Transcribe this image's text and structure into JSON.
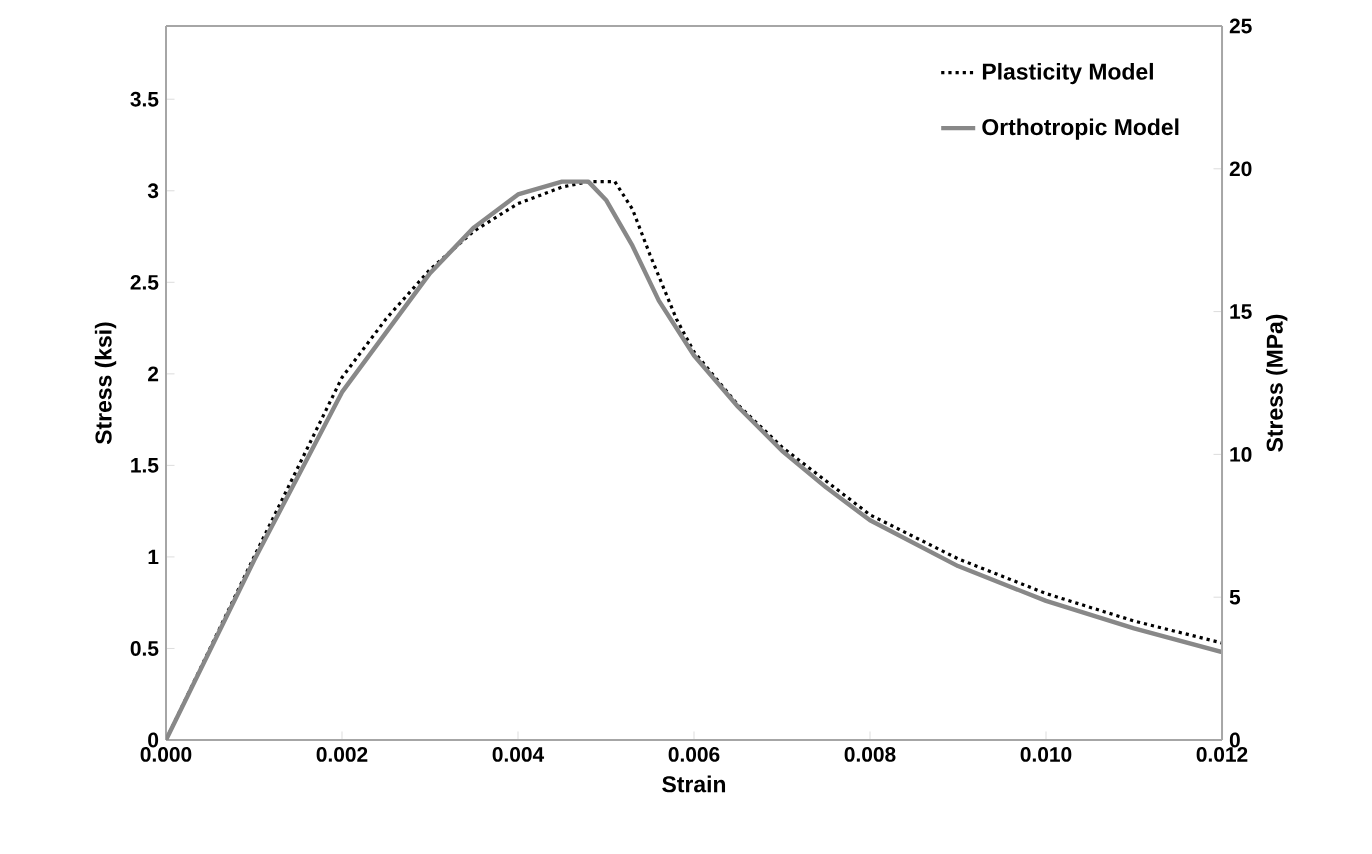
{
  "chart_data": {
    "type": "line",
    "xlabel": "Strain",
    "ylabel": "Stress (ksi)",
    "y2label": "Stress (MPa)",
    "xlim": [
      0,
      0.012
    ],
    "xticks": [
      {
        "value": 0,
        "label": "0.000"
      },
      {
        "value": 0.002,
        "label": "0.002"
      },
      {
        "value": 0.004,
        "label": "0.004"
      },
      {
        "value": 0.006,
        "label": "0.006"
      },
      {
        "value": 0.008,
        "label": "0.008"
      },
      {
        "value": 0.01,
        "label": "0.010"
      },
      {
        "value": 0.012,
        "label": "0.012"
      }
    ],
    "ylim": [
      0,
      3.9
    ],
    "yticks": [
      0,
      0.5,
      1,
      1.5,
      2,
      2.5,
      3,
      3.5
    ],
    "y2lim": [
      0,
      25
    ],
    "y2ticks": [
      0,
      5,
      10,
      15,
      20,
      25
    ],
    "grid": false,
    "legend": "top right",
    "marker": "none",
    "series": [
      {
        "name": "Plasticity Model",
        "color": "#000000",
        "line_style": "dotted",
        "x": [
          0,
          0.001,
          0.002,
          0.0025,
          0.003,
          0.0035,
          0.004,
          0.0045,
          0.0048,
          0.0051,
          0.0053,
          0.0055,
          0.0058,
          0.006,
          0.0065,
          0.007,
          0.008,
          0.009,
          0.01,
          0.011,
          0.012
        ],
        "values": [
          0,
          1.0,
          1.98,
          2.3,
          2.57,
          2.78,
          2.93,
          3.02,
          3.05,
          3.05,
          2.9,
          2.65,
          2.3,
          2.12,
          1.83,
          1.6,
          1.23,
          0.99,
          0.8,
          0.65,
          0.53
        ]
      },
      {
        "name": "Orthotropic Model",
        "color": "#888888",
        "line_style": "solid",
        "x": [
          0,
          0.001,
          0.002,
          0.003,
          0.0035,
          0.004,
          0.0045,
          0.0048,
          0.005,
          0.0053,
          0.0056,
          0.006,
          0.0065,
          0.007,
          0.0075,
          0.008,
          0.009,
          0.01,
          0.011,
          0.012
        ],
        "values": [
          0,
          0.98,
          1.9,
          2.55,
          2.8,
          2.98,
          3.05,
          3.05,
          2.95,
          2.7,
          2.4,
          2.1,
          1.82,
          1.58,
          1.38,
          1.2,
          0.95,
          0.76,
          0.61,
          0.48
        ]
      }
    ]
  }
}
